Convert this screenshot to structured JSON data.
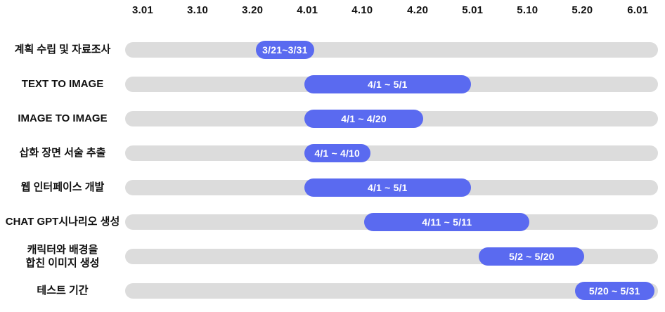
{
  "chart_data": {
    "type": "bar",
    "variant": "gantt-horizontal",
    "title": "",
    "xlabel": "",
    "ylabel": "",
    "grid": false,
    "legend": "none",
    "axis_position": "top",
    "x_ticks": [
      "3.01",
      "3.10",
      "3.20",
      "4.01",
      "4.10",
      "4.20",
      "5.01",
      "5.10",
      "5.20",
      "6.01"
    ],
    "x_tick_centers_pct": [
      3.3,
      13.6,
      23.9,
      34.2,
      44.5,
      54.9,
      65.2,
      75.5,
      85.8,
      96.2
    ],
    "tasks": [
      {
        "label": "계획 수립 및 자료조사",
        "range_label": "3/21~3/31",
        "start": "3/21",
        "end": "3/31",
        "left_pct": 24.5,
        "width_pct": 11.0
      },
      {
        "label": "TEXT TO IMAGE",
        "range_label": "4/1 ~ 5/1",
        "start": "4/1",
        "end": "5/1",
        "left_pct": 33.6,
        "width_pct": 31.3
      },
      {
        "label": "IMAGE TO IMAGE",
        "range_label": "4/1 ~ 4/20",
        "start": "4/1",
        "end": "4/20",
        "left_pct": 33.6,
        "width_pct": 22.4
      },
      {
        "label": "삽화 장면 서술 추출",
        "range_label": "4/1 ~ 4/10",
        "start": "4/1",
        "end": "4/10",
        "left_pct": 33.6,
        "width_pct": 12.4
      },
      {
        "label": "웹 인터페이스 개발",
        "range_label": "4/1 ~ 5/1",
        "start": "4/1",
        "end": "5/1",
        "left_pct": 33.6,
        "width_pct": 31.3
      },
      {
        "label": "CHAT GPT시나리오 생성",
        "range_label": "4/11 ~ 5/11",
        "start": "4/11",
        "end": "5/11",
        "left_pct": 44.9,
        "width_pct": 31.0
      },
      {
        "label": "캐릭터와 배경을\n합친 이미지 생성",
        "range_label": "5/2 ~ 5/20",
        "start": "5/2",
        "end": "5/20",
        "left_pct": 66.4,
        "width_pct": 19.8
      },
      {
        "label": "테스트 기간",
        "range_label": "5/20 ~ 5/31",
        "start": "5/20",
        "end": "5/31",
        "left_pct": 84.4,
        "width_pct": 14.9
      }
    ],
    "colors": {
      "bar": "#5A6AF0",
      "track": "#DCDCDC",
      "bar_text": "#FFFFFF",
      "axis_text": "#111111",
      "background": "#FFFFFF"
    }
  }
}
